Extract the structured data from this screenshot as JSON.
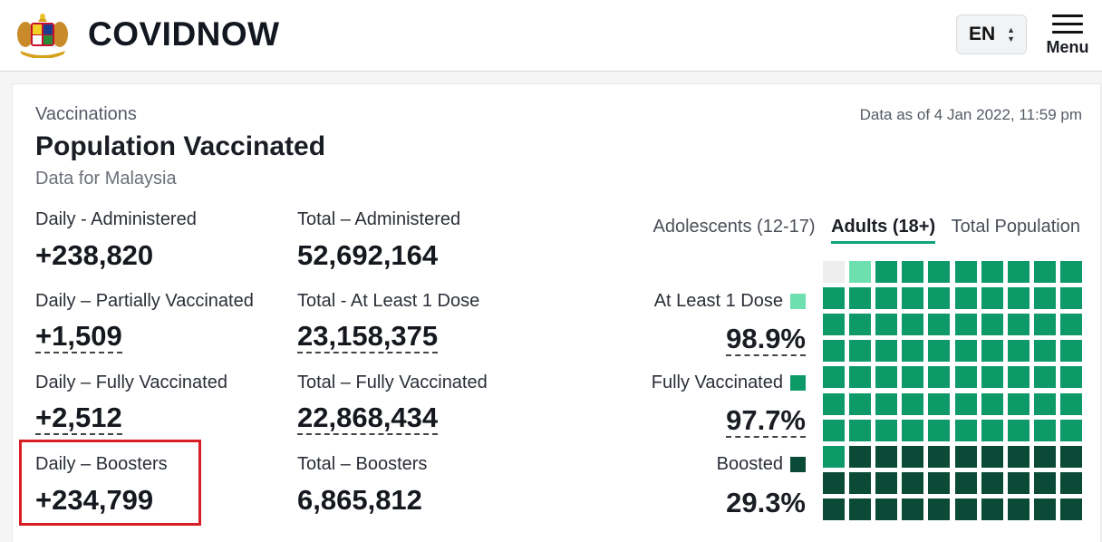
{
  "header": {
    "brand": "COVIDNOW",
    "lang": "EN",
    "menu_label": "Menu"
  },
  "card": {
    "eyebrow": "Vaccinations",
    "as_of": "Data as of 4 Jan 2022, 11:59 pm",
    "title": "Population Vaccinated",
    "subtitle": "Data for Malaysia"
  },
  "stats": {
    "daily_admin": {
      "label": "Daily - Administered",
      "value": "+238,820"
    },
    "total_admin": {
      "label": "Total – Administered",
      "value": "52,692,164"
    },
    "daily_partial": {
      "label": "Daily – Partially Vaccinated",
      "value": "+1,509"
    },
    "total_one_dose": {
      "label": "Total - At Least 1 Dose",
      "value": "23,158,375"
    },
    "daily_full": {
      "label": "Daily – Fully Vaccinated",
      "value": "+2,512"
    },
    "total_full": {
      "label": "Total – Fully Vaccinated",
      "value": "22,868,434"
    },
    "daily_boost": {
      "label": "Daily – Boosters",
      "value": "+234,799"
    },
    "total_boost": {
      "label": "Total – Boosters",
      "value": "6,865,812"
    }
  },
  "tabs": [
    "Adolescents (12-17)",
    "Adults (18+)",
    "Total Population"
  ],
  "active_tab": "Adults (18+)",
  "breakdown": {
    "one_dose": {
      "label": "At Least 1 Dose",
      "value": "98.9%",
      "color": "#6ee0b0"
    },
    "full": {
      "label": "Fully Vaccinated",
      "value": "97.7%",
      "color": "#0d9a68"
    },
    "boosted": {
      "label": "Boosted",
      "value": "29.3%",
      "color": "#0b4a36"
    }
  },
  "colors": {
    "accent": "#10a37f",
    "highlight": "#d71e26",
    "empty": "#eeeeee"
  }
}
